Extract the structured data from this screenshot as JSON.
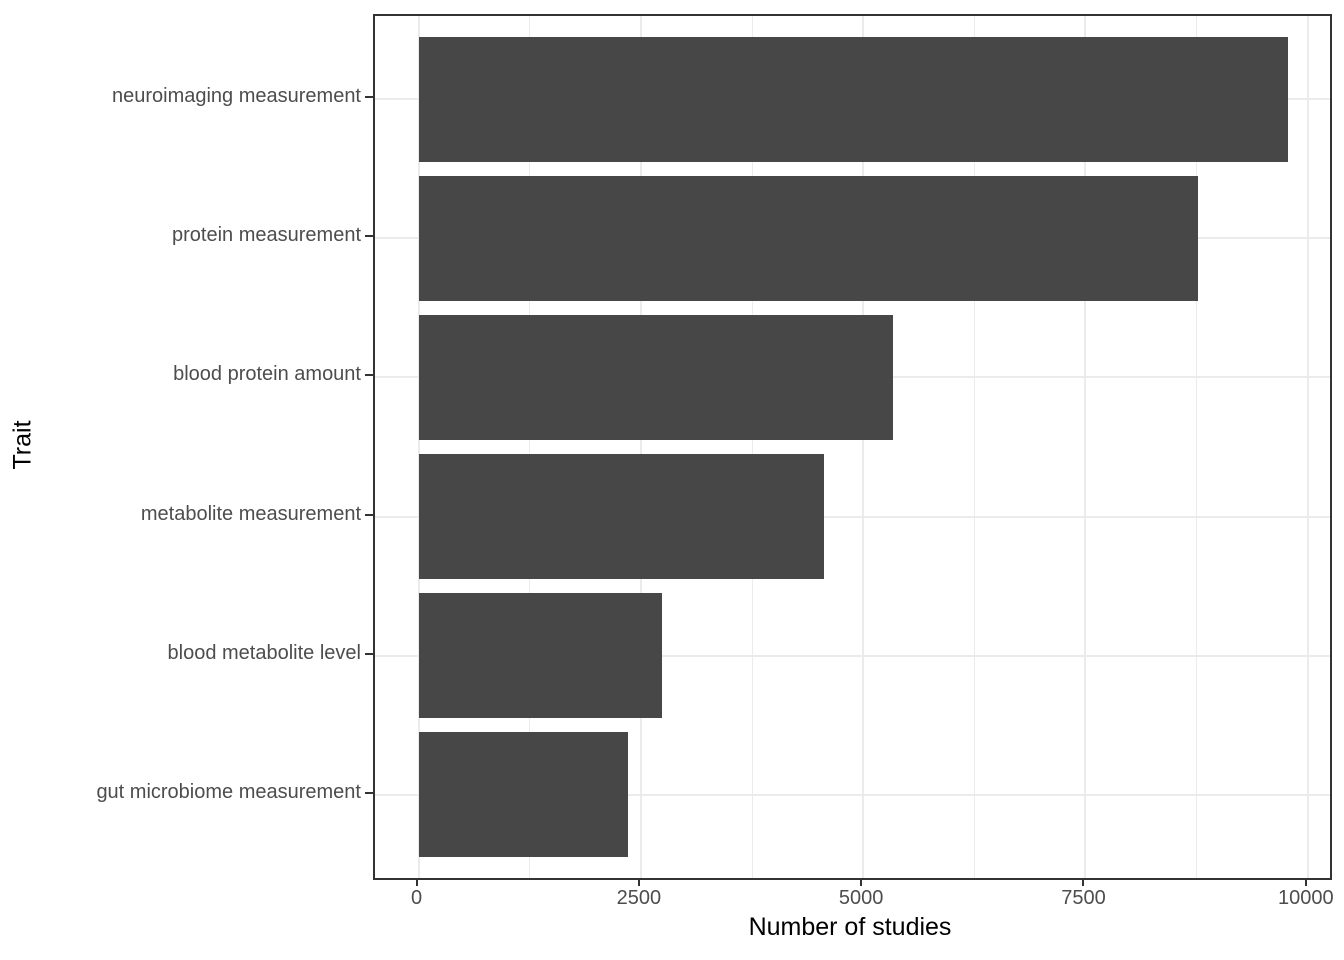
{
  "chart_data": {
    "type": "bar",
    "orientation": "horizontal",
    "title": "",
    "xlabel": "Number of studies",
    "ylabel": "Trait",
    "categories": [
      "neuroimaging measurement",
      "protein measurement",
      "blood protein amount",
      "metabolite measurement",
      "blood metabolite level",
      "gut microbiome measurement"
    ],
    "values": [
      9780,
      8760,
      5340,
      4560,
      2740,
      2360
    ],
    "x_ticks": [
      0,
      2500,
      5000,
      7500,
      10000
    ],
    "x_tick_labels": [
      "0",
      "2500",
      "5000",
      "7500",
      "10000"
    ],
    "x_minor_ticks": [
      1250,
      3750,
      6250,
      8750
    ],
    "xlim": [
      0,
      10000
    ],
    "grid": "major-and-minor-vertical, major-horizontal",
    "legend": "none",
    "colors": {
      "bar": "#474747",
      "gridline": "#ebebeb",
      "panel_border": "#333333",
      "tick_mark": "#333333",
      "axis_text": "#4d4d4d",
      "axis_title": "#000000",
      "background": "#ffffff"
    }
  }
}
